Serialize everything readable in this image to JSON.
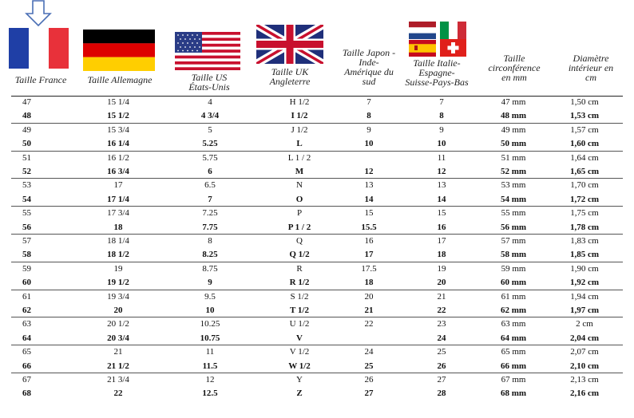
{
  "headers": {
    "france": "Taille France",
    "allemagne": "Taille Allemagne",
    "us": [
      "Taille US",
      "États-Unis"
    ],
    "uk": [
      "Taille UK",
      "Angleterre"
    ],
    "japon": [
      "Taille Japon -",
      "Inde-",
      "Amérique du",
      "sud"
    ],
    "italie": [
      "Taille Italie-",
      "Espagne-",
      "Suisse-Pays-Bas"
    ],
    "circ": [
      "Taille",
      "circonférence",
      "en mm"
    ],
    "diam": [
      "Diamètre",
      "intérieur en",
      "cm"
    ]
  },
  "colors": {
    "france": [
      "#1f3fa6",
      "#ffffff",
      "#e8313a"
    ],
    "germany": [
      "#000000",
      "#dd0000",
      "#ffce00"
    ],
    "arrow": "#4a6fb5"
  },
  "icons": [
    "down-arrow-icon",
    "flag-france-icon",
    "flag-germany-icon",
    "flag-usa-icon",
    "flag-uk-icon",
    "flag-netherlands-icon",
    "flag-italy-icon",
    "flag-spain-icon",
    "flag-switzerland-icon"
  ],
  "rows": [
    {
      "fr": "47",
      "de": "15 1/4",
      "us": "4",
      "uk": "H 1/2",
      "jp": "7",
      "it": "7",
      "circ": "47 mm",
      "diam": "1,50 cm",
      "bold": false
    },
    {
      "fr": "48",
      "de": "15 1/2",
      "us": "4 3/4",
      "uk": "I 1/2",
      "jp": "8",
      "it": "8",
      "circ": "48 mm",
      "diam": "1,53 cm",
      "bold": true
    },
    {
      "fr": "49",
      "de": "15 3/4",
      "us": "5",
      "uk": "J 1/2",
      "jp": "9",
      "it": "9",
      "circ": "49 mm",
      "diam": "1,57 cm",
      "bold": false
    },
    {
      "fr": "50",
      "de": "16 1/4",
      "us": "5.25",
      "uk": "L",
      "jp": "10",
      "it": "10",
      "circ": "50 mm",
      "diam": "1,60 cm",
      "bold": true
    },
    {
      "fr": "51",
      "de": "16 1/2",
      "us": "5.75",
      "uk": "L 1 / 2",
      "jp": "",
      "it": "11",
      "circ": "51 mm",
      "diam": "1,64 cm",
      "bold": false
    },
    {
      "fr": "52",
      "de": "16 3/4",
      "us": "6",
      "uk": "M",
      "jp": "12",
      "it": "12",
      "circ": "52 mm",
      "diam": "1,65 cm",
      "bold": true
    },
    {
      "fr": "53",
      "de": "17",
      "us": "6.5",
      "uk": "N",
      "jp": "13",
      "it": "13",
      "circ": "53 mm",
      "diam": "1,70 cm",
      "bold": false
    },
    {
      "fr": "54",
      "de": "17 1/4",
      "us": "7",
      "uk": "O",
      "jp": "14",
      "it": "14",
      "circ": "54 mm",
      "diam": "1,72 cm",
      "bold": true
    },
    {
      "fr": "55",
      "de": "17 3/4",
      "us": "7.25",
      "uk": "P",
      "jp": "15",
      "it": "15",
      "circ": "55 mm",
      "diam": "1,75 cm",
      "bold": false
    },
    {
      "fr": "56",
      "de": "18",
      "us": "7.75",
      "uk": "P 1 / 2",
      "jp": "15.5",
      "it": "16",
      "circ": "56 mm",
      "diam": "1,78 cm",
      "bold": true
    },
    {
      "fr": "57",
      "de": "18 1/4",
      "us": "8",
      "uk": "Q",
      "jp": "16",
      "it": "17",
      "circ": "57 mm",
      "diam": "1,83 cm",
      "bold": false
    },
    {
      "fr": "58",
      "de": "18 1/2",
      "us": "8.25",
      "uk": "Q 1/2",
      "jp": "17",
      "it": "18",
      "circ": "58 mm",
      "diam": "1,85 cm",
      "bold": true
    },
    {
      "fr": "59",
      "de": "19",
      "us": "8.75",
      "uk": "R",
      "jp": "17.5",
      "it": "19",
      "circ": "59 mm",
      "diam": "1,90 cm",
      "bold": false
    },
    {
      "fr": "60",
      "de": "19 1/2",
      "us": "9",
      "uk": "R 1/2",
      "jp": "18",
      "it": "20",
      "circ": "60 mm",
      "diam": "1,92 cm",
      "bold": true
    },
    {
      "fr": "61",
      "de": "19 3/4",
      "us": "9.5",
      "uk": "S 1/2",
      "jp": "20",
      "it": "21",
      "circ": "61 mm",
      "diam": "1,94 cm",
      "bold": false
    },
    {
      "fr": "62",
      "de": "20",
      "us": "10",
      "uk": "T 1/2",
      "jp": "21",
      "it": "22",
      "circ": "62 mm",
      "diam": "1,97 cm",
      "bold": true
    },
    {
      "fr": "63",
      "de": "20 1/2",
      "us": "10.25",
      "uk": "U 1/2",
      "jp": "22",
      "it": "23",
      "circ": "63 mm",
      "diam": "2 cm",
      "bold": false
    },
    {
      "fr": "64",
      "de": "20 3/4",
      "us": "10.75",
      "uk": "V",
      "jp": "",
      "it": "24",
      "circ": "64 mm",
      "diam": "2,04 cm",
      "bold": true
    },
    {
      "fr": "65",
      "de": "21",
      "us": "11",
      "uk": "V 1/2",
      "jp": "24",
      "it": "25",
      "circ": "65 mm",
      "diam": "2,07 cm",
      "bold": false
    },
    {
      "fr": "66",
      "de": "21 1/2",
      "us": "11.5",
      "uk": "W 1/2",
      "jp": "25",
      "it": "26",
      "circ": "66 mm",
      "diam": "2,10 cm",
      "bold": true
    },
    {
      "fr": "67",
      "de": "21 3/4",
      "us": "12",
      "uk": "Y",
      "jp": "26",
      "it": "27",
      "circ": "67 mm",
      "diam": "2,13 cm",
      "bold": false
    },
    {
      "fr": "68",
      "de": "22",
      "us": "12.5",
      "uk": "Z",
      "jp": "27",
      "it": "28",
      "circ": "68 mm",
      "diam": "2,16 cm",
      "bold": true
    }
  ]
}
